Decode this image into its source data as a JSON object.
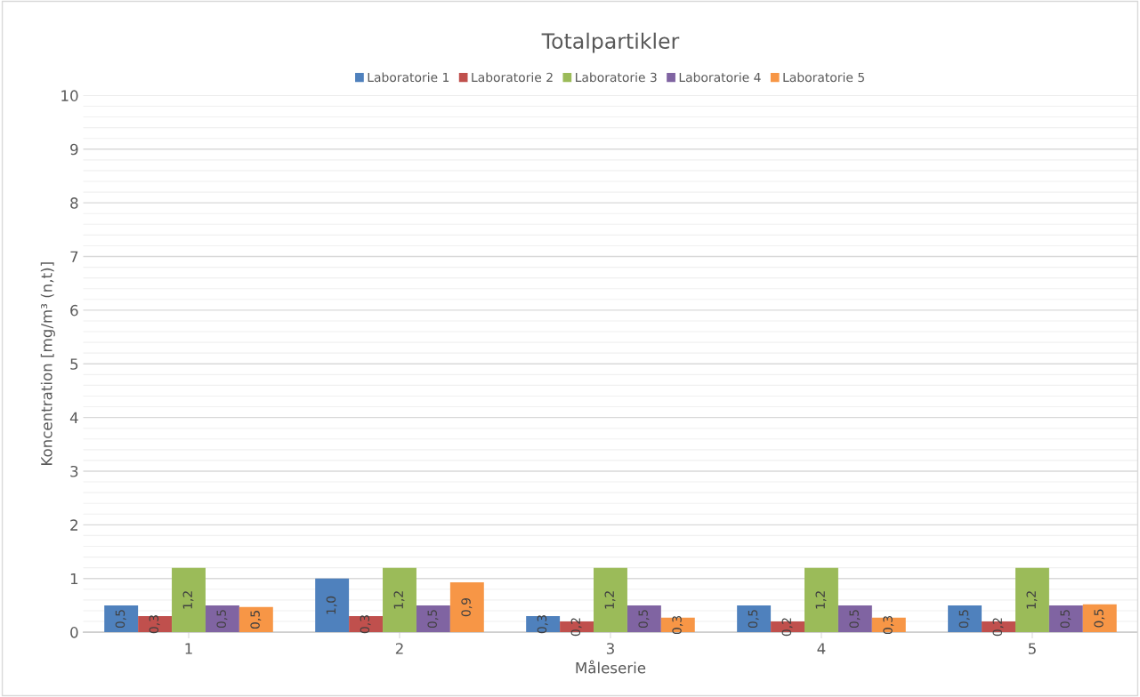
{
  "chart_data": {
    "type": "bar",
    "title": "Totalpartikler",
    "xlabel": "Måleserie",
    "ylabel": "Koncentration [mg/m³ (n,t)]",
    "categories": [
      "1",
      "2",
      "3",
      "4",
      "5"
    ],
    "series": [
      {
        "name": "Laboratorie 1",
        "color": "#4f81bd",
        "values": [
          0.5,
          1.0,
          0.3,
          0.5,
          0.5
        ],
        "value_labels": [
          "0,5",
          "1,0",
          "0,3",
          "0,5",
          "0,5"
        ]
      },
      {
        "name": "Laboratorie 2",
        "color": "#c0504d",
        "values": [
          0.3,
          0.3,
          0.2,
          0.2,
          0.2
        ],
        "value_labels": [
          "0,3",
          "0,3",
          "0,2",
          "0,2",
          "0,2"
        ]
      },
      {
        "name": "Laboratorie 3",
        "color": "#9bbb59",
        "values": [
          1.2,
          1.2,
          1.2,
          1.2,
          1.2
        ],
        "value_labels": [
          "1,2",
          "1,2",
          "1,2",
          "1,2",
          "1,2"
        ]
      },
      {
        "name": "Laboratorie 4",
        "color": "#8064a2",
        "values": [
          0.5,
          0.5,
          0.5,
          0.5,
          0.5
        ],
        "value_labels": [
          "0,5",
          "0,5",
          "0,5",
          "0,5",
          "0,5"
        ]
      },
      {
        "name": "Laboratorie 5",
        "color": "#f79646",
        "values": [
          0.47,
          0.93,
          0.27,
          0.27,
          0.52
        ],
        "value_labels": [
          "0,5",
          "0,9",
          "0,3",
          "0,3",
          "0,5"
        ]
      }
    ],
    "ylim": [
      0,
      10
    ],
    "yticks": [
      0,
      1,
      2,
      3,
      4,
      5,
      6,
      7,
      8,
      9,
      10
    ],
    "grid": "y",
    "legend": "top"
  }
}
